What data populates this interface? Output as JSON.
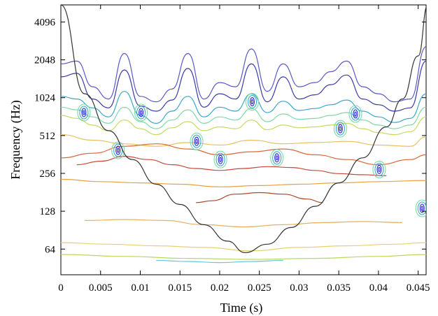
{
  "chart_data": {
    "type": "contour",
    "title": "",
    "xlabel": "Time (s)",
    "ylabel": "Frequency (Hz)",
    "xlim": [
      0,
      0.046
    ],
    "ylim": [
      40,
      5600
    ],
    "yscale": "log2",
    "x_ticks": [
      "0",
      "0.005",
      "0.01",
      "0.015",
      "0.02",
      "0.025",
      "0.03",
      "0.035",
      "0.04",
      "0.045"
    ],
    "x_tick_values": [
      0,
      0.005,
      0.01,
      0.015,
      0.02,
      0.025,
      0.03,
      0.035,
      0.04,
      0.045
    ],
    "y_ticks": [
      "64",
      "128",
      "256",
      "512",
      "1024",
      "2048",
      "4096"
    ],
    "y_tick_values": [
      64,
      128,
      256,
      512,
      1024,
      2048,
      4096
    ],
    "grid": false,
    "cone_of_influence": {
      "t": [
        0,
        0.003,
        0.006,
        0.009,
        0.012,
        0.015,
        0.018,
        0.021,
        0.0232,
        0.026,
        0.029,
        0.032,
        0.035,
        0.038,
        0.041,
        0.043,
        0.045,
        0.0462
      ],
      "f": [
        5600,
        1100,
        560,
        330,
        210,
        145,
        100,
        74,
        60,
        70,
        95,
        140,
        215,
        340,
        600,
        1000,
        2200,
        5600
      ]
    },
    "contour_bands": [
      {
        "color": "#5858c8",
        "t": [
          0,
          0.002,
          0.004,
          0.006,
          0.008,
          0.01,
          0.012,
          0.014,
          0.016,
          0.018,
          0.02,
          0.022,
          0.024,
          0.026,
          0.028,
          0.03,
          0.032,
          0.034,
          0.036,
          0.038,
          0.04,
          0.042,
          0.044,
          0.046
        ],
        "f": [
          1900,
          2000,
          1250,
          1000,
          2300,
          1050,
          950,
          1200,
          2300,
          1000,
          1350,
          1250,
          2500,
          1150,
          1900,
          1250,
          1350,
          1650,
          2000,
          1250,
          1100,
          950,
          1000,
          2600
        ]
      },
      {
        "color": "#3a3aa8",
        "t": [
          0,
          0.002,
          0.004,
          0.006,
          0.008,
          0.01,
          0.012,
          0.014,
          0.016,
          0.018,
          0.02,
          0.022,
          0.024,
          0.026,
          0.028,
          0.03,
          0.032,
          0.034,
          0.036,
          0.038,
          0.04,
          0.042,
          0.044,
          0.046
        ],
        "f": [
          1500,
          1600,
          1000,
          850,
          1700,
          880,
          800,
          980,
          1750,
          860,
          1100,
          1000,
          1900,
          950,
          1500,
          1000,
          1080,
          1300,
          1550,
          1000,
          900,
          800,
          850,
          2000
        ]
      },
      {
        "color": "#3aa8c8",
        "t": [
          0,
          0.002,
          0.004,
          0.006,
          0.008,
          0.01,
          0.012,
          0.014,
          0.016,
          0.018,
          0.02,
          0.022,
          0.024,
          0.026,
          0.028,
          0.03,
          0.032,
          0.034,
          0.036,
          0.038,
          0.04,
          0.042,
          0.044,
          0.046
        ],
        "f": [
          1050,
          1000,
          850,
          720,
          1150,
          740,
          640,
          800,
          1050,
          720,
          860,
          800,
          1100,
          780,
          960,
          810,
          840,
          900,
          980,
          800,
          720,
          650,
          700,
          1100
        ]
      },
      {
        "color": "#7fd8a8",
        "t": [
          0,
          0.002,
          0.004,
          0.006,
          0.008,
          0.01,
          0.012,
          0.014,
          0.016,
          0.018,
          0.02,
          0.022,
          0.024,
          0.026,
          0.028,
          0.03,
          0.032,
          0.034,
          0.036,
          0.038,
          0.04,
          0.042,
          0.044,
          0.046
        ],
        "f": [
          860,
          820,
          720,
          640,
          860,
          660,
          580,
          680,
          820,
          640,
          720,
          680,
          840,
          660,
          760,
          690,
          700,
          740,
          780,
          680,
          620,
          580,
          620,
          860
        ]
      },
      {
        "color": "#c8d860",
        "t": [
          0,
          0.002,
          0.004,
          0.006,
          0.008,
          0.01,
          0.012,
          0.014,
          0.016,
          0.018,
          0.02,
          0.022,
          0.024,
          0.026,
          0.028,
          0.03,
          0.032,
          0.034,
          0.036,
          0.038,
          0.04,
          0.042,
          0.044,
          0.046
        ],
        "f": [
          740,
          700,
          620,
          560,
          680,
          580,
          520,
          590,
          660,
          560,
          600,
          580,
          680,
          570,
          620,
          590,
          600,
          620,
          640,
          580,
          540,
          520,
          550,
          720
        ]
      },
      {
        "color": "#e8c060",
        "t": [
          0,
          0.004,
          0.008,
          0.012,
          0.016,
          0.02,
          0.024,
          0.028,
          0.032,
          0.036,
          0.04,
          0.044,
          0.046
        ],
        "f": [
          520,
          470,
          440,
          420,
          450,
          430,
          470,
          440,
          450,
          460,
          430,
          420,
          500
        ]
      },
      {
        "color": "#d86a3a",
        "t": [
          0,
          0.004,
          0.008,
          0.012,
          0.016,
          0.02,
          0.024,
          0.028,
          0.032,
          0.036,
          0.04,
          0.044,
          0.046
        ],
        "f": [
          340,
          370,
          420,
          440,
          400,
          360,
          380,
          400,
          360,
          330,
          300,
          330,
          360
        ]
      },
      {
        "color": "#c84a3a",
        "t": [
          0.002,
          0.005,
          0.008,
          0.011,
          0.014,
          0.017,
          0.02,
          0.023,
          0.026,
          0.029,
          0.032,
          0.035,
          0.038,
          0.041
        ],
        "f": [
          300,
          320,
          350,
          330,
          300,
          280,
          270,
          280,
          290,
          285,
          270,
          255,
          250,
          245
        ]
      },
      {
        "color": "#e8a040",
        "t": [
          0,
          0.005,
          0.01,
          0.015,
          0.02,
          0.025,
          0.03,
          0.035,
          0.04,
          0.046
        ],
        "f": [
          230,
          220,
          215,
          210,
          200,
          205,
          210,
          215,
          220,
          225
        ]
      },
      {
        "color": "#a84a2a",
        "t": [
          0.017,
          0.019,
          0.022,
          0.025,
          0.028,
          0.031,
          0.033
        ],
        "f": [
          150,
          155,
          175,
          180,
          175,
          160,
          150
        ]
      },
      {
        "color": "#e8b060",
        "t": [
          0.003,
          0.008,
          0.013,
          0.018,
          0.023,
          0.028,
          0.033,
          0.038,
          0.043
        ],
        "f": [
          108,
          110,
          108,
          100,
          96,
          100,
          104,
          106,
          104
        ]
      },
      {
        "color": "#e8d070",
        "t": [
          0,
          0.006,
          0.012,
          0.018,
          0.024,
          0.03,
          0.036,
          0.042,
          0.046
        ],
        "f": [
          72,
          70,
          68,
          66,
          62,
          66,
          68,
          70,
          72
        ]
      },
      {
        "color": "#b8d860",
        "t": [
          0,
          0.008,
          0.016,
          0.024,
          0.032,
          0.04,
          0.046
        ],
        "f": [
          58,
          56,
          54,
          53,
          54,
          56,
          58
        ]
      },
      {
        "color": "#68c8d8",
        "t": [
          0.012,
          0.016,
          0.02,
          0.024,
          0.028
        ],
        "f": [
          52,
          51,
          50,
          51,
          52
        ]
      }
    ],
    "hotspots": [
      {
        "t": 0.0029,
        "f": 780,
        "color": "#2a2ad8"
      },
      {
        "t": 0.0072,
        "f": 390,
        "color": "#2a2ad8"
      },
      {
        "t": 0.0101,
        "f": 780,
        "color": "#2a2ad8"
      },
      {
        "t": 0.0171,
        "f": 460,
        "color": "#2a2ad8"
      },
      {
        "t": 0.0201,
        "f": 330,
        "color": "#2a2ad8"
      },
      {
        "t": 0.0241,
        "f": 950,
        "color": "#2a2ad8"
      },
      {
        "t": 0.0272,
        "f": 340,
        "color": "#2a2ad8"
      },
      {
        "t": 0.0352,
        "f": 580,
        "color": "#2a2ad8"
      },
      {
        "t": 0.0371,
        "f": 760,
        "color": "#2a2ad8"
      },
      {
        "t": 0.0401,
        "f": 275,
        "color": "#2a2ad8"
      },
      {
        "t": 0.0455,
        "f": 135,
        "color": "#2a2ad8"
      }
    ]
  }
}
